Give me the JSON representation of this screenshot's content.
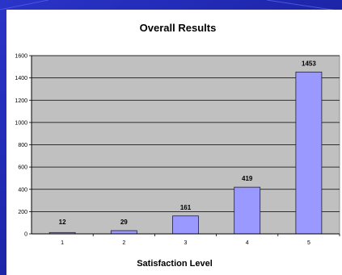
{
  "chart_data": {
    "type": "bar",
    "title": "Overall Results",
    "xlabel": "Satisfaction Level",
    "ylabel": "",
    "categories": [
      "1",
      "2",
      "3",
      "4",
      "5"
    ],
    "values": [
      12,
      29,
      161,
      419,
      1453
    ],
    "data_labels": [
      "12",
      "29",
      "161",
      "419",
      "1453"
    ],
    "y_ticks": [
      "0",
      "200",
      "400",
      "600",
      "800",
      "1000",
      "1200",
      "1400",
      "1600"
    ],
    "ylim": [
      0,
      1600
    ],
    "grid": true,
    "legend": "none",
    "colors": {
      "bar_fill": "#9999ff",
      "bar_stroke": "#222222",
      "plot_bg": "#c0c0c0",
      "slide_bg": "#1a22a8"
    }
  }
}
